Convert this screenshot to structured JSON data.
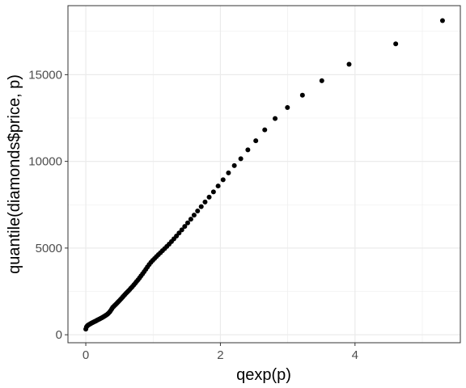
{
  "chart_data": {
    "type": "scatter",
    "title": "",
    "xlabel": "qexp(p)",
    "ylabel": "quantile(diamonds$price, p)",
    "xlim": [
      -0.265,
      5.565
    ],
    "ylim": [
      -460,
      18980
    ],
    "xticks": [
      0,
      2,
      4
    ],
    "xtick_labels": [
      "0",
      "2",
      "4"
    ],
    "yticks": [
      0,
      5000,
      10000,
      15000
    ],
    "ytick_labels": [
      "0",
      "5000",
      "10000",
      "15000"
    ],
    "grid": true,
    "point_color": "#000000",
    "series": [
      {
        "x": [
          0.0,
          0.01,
          0.02,
          0.03,
          0.041,
          0.051,
          0.062,
          0.073,
          0.083,
          0.094,
          0.105,
          0.117,
          0.128,
          0.139,
          0.151,
          0.163,
          0.174,
          0.186,
          0.198,
          0.211,
          0.223,
          0.236,
          0.248,
          0.261,
          0.274,
          0.288,
          0.301,
          0.315,
          0.329,
          0.342,
          0.357,
          0.371,
          0.386,
          0.4,
          0.416,
          0.431,
          0.446,
          0.462,
          0.478,
          0.494,
          0.511,
          0.528,
          0.545,
          0.562,
          0.58,
          0.598,
          0.616,
          0.635,
          0.654,
          0.673,
          0.693,
          0.713,
          0.734,
          0.755,
          0.777,
          0.799,
          0.821,
          0.844,
          0.868,
          0.892,
          0.916,
          0.942,
          0.968,
          0.994,
          1.022,
          1.05,
          1.079,
          1.109,
          1.139,
          1.171,
          1.204,
          1.238,
          1.273,
          1.309,
          1.347,
          1.386,
          1.427,
          1.47,
          1.514,
          1.561,
          1.609,
          1.661,
          1.715,
          1.772,
          1.833,
          1.897,
          1.966,
          2.04,
          2.12,
          2.207,
          2.303,
          2.408,
          2.526,
          2.659,
          2.813,
          2.996,
          3.219,
          3.507,
          3.912,
          4.605,
          5.3
        ],
        "y": [
          326,
          450,
          502,
          540,
          570,
          596,
          620,
          644,
          669,
          690,
          713,
          736,
          758,
          778,
          801,
          826,
          850,
          874,
          900,
          923,
          948,
          975,
          1003,
          1032,
          1063,
          1095,
          1129,
          1168,
          1212,
          1262,
          1321,
          1402,
          1490,
          1577,
          1640,
          1695,
          1754,
          1818,
          1883,
          1947,
          2014,
          2087,
          2164,
          2239,
          2312,
          2387,
          2460,
          2537,
          2614,
          2698,
          2780,
          2874,
          2969,
          3069,
          3172,
          3283,
          3397,
          3516,
          3643,
          3774,
          3911,
          4052,
          4177,
          4291,
          4397,
          4508,
          4620,
          4731,
          4848,
          4968,
          5093,
          5229,
          5375,
          5529,
          5695,
          5867,
          6050,
          6248,
          6449,
          6668,
          6899,
          7137,
          7389,
          7657,
          7936,
          8241,
          8581,
          8939,
          9336,
          9754,
          10151,
          10664,
          11189,
          11817,
          12472,
          13104,
          13816,
          14650,
          15602,
          16779,
          18120
        ]
      }
    ]
  }
}
